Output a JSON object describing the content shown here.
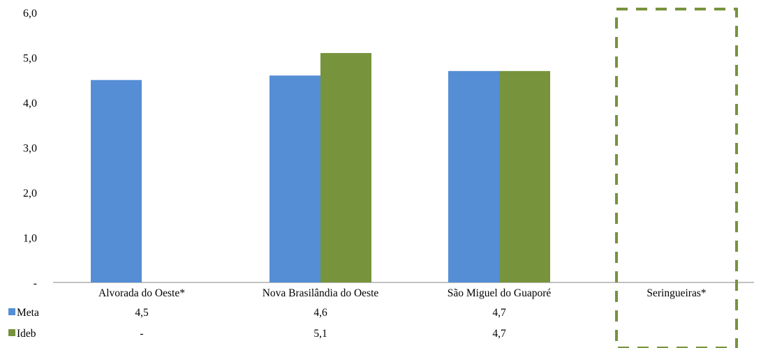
{
  "chart_data": {
    "type": "bar",
    "categories": [
      "Alvorada do Oeste*",
      "Nova Brasilândia do Oeste",
      "São Miguel do Guaporé",
      "Seringueiras*"
    ],
    "series": [
      {
        "name": "Meta",
        "values": [
          4.5,
          4.6,
          4.7,
          null
        ],
        "table": [
          "4,5",
          "4,6",
          "4,7",
          ""
        ],
        "color": "#558ed5"
      },
      {
        "name": "Ideb",
        "values": [
          null,
          5.1,
          4.7,
          null
        ],
        "table": [
          "-",
          "5,1",
          "4,7",
          ""
        ],
        "color": "#77933c"
      }
    ],
    "ylim": [
      0,
      6
    ],
    "yticks": [
      "-",
      "1,0",
      "2,0",
      "3,0",
      "4,0",
      "5,0",
      "6,0"
    ],
    "highlight": {
      "category": "Seringueiras*",
      "style": "dashed",
      "color": "#77933c"
    },
    "legend": "data-table",
    "grid": false
  }
}
